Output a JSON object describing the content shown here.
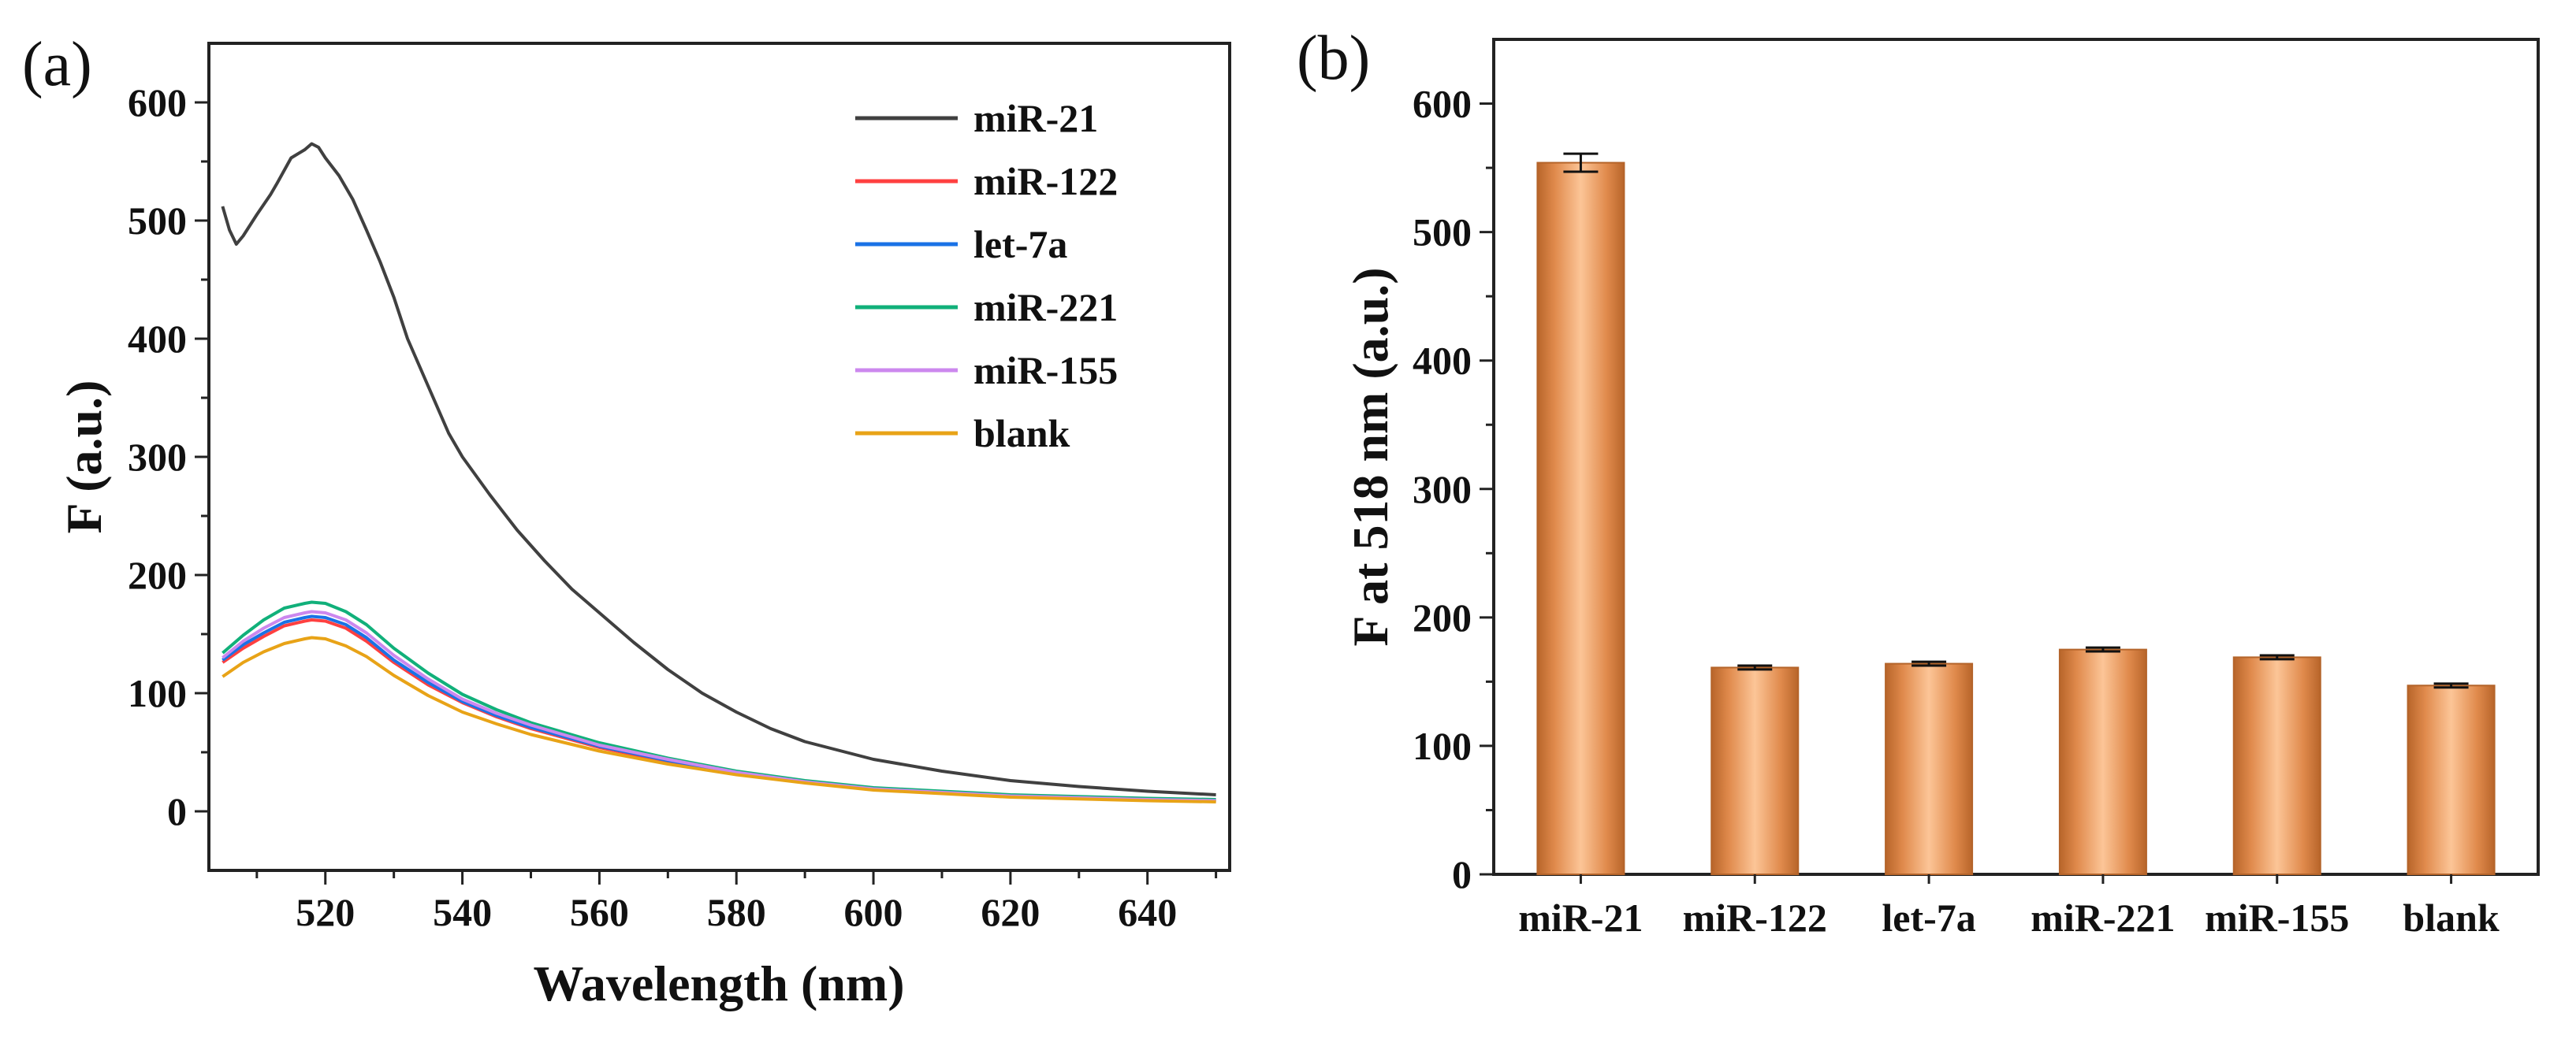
{
  "chart_data": [
    {
      "panel_label": "(a)",
      "type": "line",
      "xlabel": "Wavelength (nm)",
      "ylabel": "F (a.u.)",
      "xlim": [
        503,
        652
      ],
      "ylim": [
        -50,
        650
      ],
      "xticks": [
        520,
        540,
        560,
        580,
        600,
        620,
        640
      ],
      "yticks": [
        0,
        100,
        200,
        300,
        400,
        500,
        600
      ],
      "legend_position": "top-right",
      "series": [
        {
          "name": "miR-21",
          "color": "#404040",
          "x": [
            505,
            506,
            507,
            508,
            510,
            512,
            513,
            515,
            517,
            518,
            519,
            520,
            522,
            524,
            526,
            528,
            530,
            532,
            535,
            538,
            540,
            544,
            548,
            552,
            556,
            560,
            565,
            570,
            575,
            580,
            585,
            590,
            600,
            610,
            620,
            630,
            640,
            650
          ],
          "y": [
            512,
            492,
            480,
            487,
            505,
            522,
            532,
            553,
            560,
            565,
            562,
            553,
            538,
            518,
            492,
            465,
            435,
            400,
            360,
            320,
            300,
            268,
            238,
            212,
            188,
            168,
            143,
            120,
            100,
            84,
            70,
            59,
            44,
            34,
            26,
            21,
            17,
            14
          ]
        },
        {
          "name": "miR-122",
          "color": "#ff4040",
          "x": [
            505,
            508,
            511,
            514,
            517,
            518,
            520,
            523,
            526,
            530,
            535,
            540,
            545,
            550,
            560,
            570,
            580,
            590,
            600,
            620,
            640,
            650
          ],
          "y": [
            126,
            138,
            148,
            157,
            161,
            162,
            161,
            155,
            144,
            126,
            107,
            92,
            80,
            70,
            54,
            42,
            32,
            25,
            19,
            13,
            10,
            9
          ]
        },
        {
          "name": "let-7a",
          "color": "#1a72e6",
          "x": [
            505,
            508,
            511,
            514,
            517,
            518,
            520,
            523,
            526,
            530,
            535,
            540,
            545,
            550,
            560,
            570,
            580,
            590,
            600,
            620,
            640,
            650
          ],
          "y": [
            128,
            141,
            151,
            160,
            164,
            165,
            164,
            158,
            147,
            128,
            109,
            93,
            81,
            71,
            55,
            43,
            33,
            25,
            19,
            13,
            10,
            9
          ]
        },
        {
          "name": "miR-221",
          "color": "#11b07a",
          "x": [
            505,
            508,
            511,
            514,
            517,
            518,
            520,
            523,
            526,
            530,
            535,
            540,
            545,
            550,
            560,
            570,
            580,
            590,
            600,
            620,
            640,
            650
          ],
          "y": [
            134,
            149,
            162,
            172,
            176,
            177,
            176,
            169,
            158,
            138,
            117,
            99,
            86,
            75,
            58,
            45,
            34,
            26,
            20,
            14,
            11,
            10
          ]
        },
        {
          "name": "miR-155",
          "color": "#cc88ee",
          "x": [
            505,
            508,
            511,
            514,
            517,
            518,
            520,
            523,
            526,
            530,
            535,
            540,
            545,
            550,
            560,
            570,
            580,
            590,
            600,
            620,
            640,
            650
          ],
          "y": [
            130,
            144,
            155,
            164,
            168,
            169,
            168,
            162,
            151,
            132,
            112,
            95,
            83,
            73,
            56,
            44,
            33,
            25,
            19,
            13,
            10,
            9
          ]
        },
        {
          "name": "blank",
          "color": "#e8a317",
          "x": [
            505,
            508,
            511,
            514,
            517,
            518,
            520,
            523,
            526,
            530,
            535,
            540,
            545,
            550,
            560,
            570,
            580,
            590,
            600,
            620,
            640,
            650
          ],
          "y": [
            114,
            126,
            135,
            142,
            146,
            147,
            146,
            140,
            131,
            115,
            98,
            84,
            74,
            65,
            51,
            40,
            31,
            24,
            18,
            12,
            9,
            8
          ]
        }
      ]
    },
    {
      "panel_label": "(b)",
      "type": "bar",
      "xlabel": "",
      "ylabel": "F at 518 nm (a.u.)",
      "ylim": [
        0,
        650
      ],
      "yticks": [
        0,
        100,
        200,
        300,
        400,
        500,
        600
      ],
      "categories": [
        "miR-21",
        "miR-122",
        "let-7a",
        "miR-221",
        "miR-155",
        "blank"
      ],
      "values": [
        554,
        161,
        164,
        175,
        169,
        147
      ],
      "errors": [
        7,
        1.5,
        1.5,
        1.5,
        1.5,
        1.5
      ],
      "bar_color": "#f2a870",
      "bar_edge_color": "#b4642a"
    }
  ]
}
